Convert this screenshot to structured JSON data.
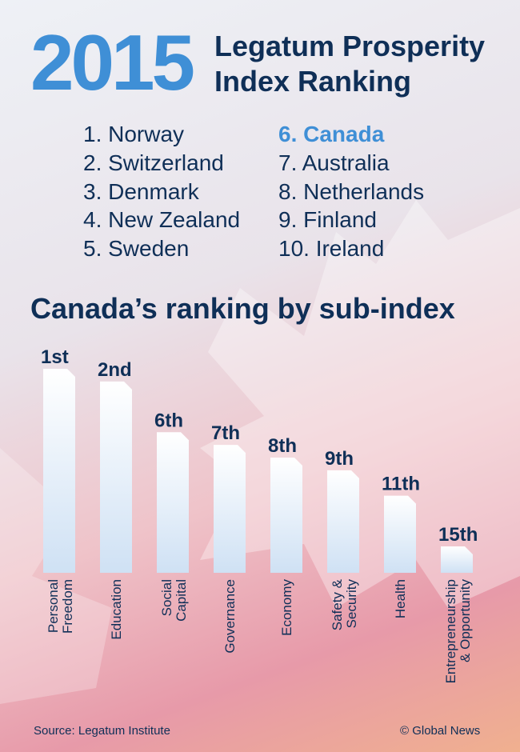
{
  "header": {
    "year": "2015",
    "title_line1": "Legatum Prosperity",
    "title_line2": "Index Ranking"
  },
  "rankings": [
    "1.  Norway",
    "2. Switzerland",
    "3. Denmark",
    "4. New Zealand",
    "5. Sweden",
    "6. Canada",
    "7. Australia",
    "8. Netherlands",
    "9. Finland",
    "10. Ireland"
  ],
  "highlight_color": "#3f8fd6",
  "subtitle": "Canada’s ranking by sub-index",
  "chart_data": {
    "type": "bar",
    "title": "Canada’s ranking by sub-index",
    "categories": [
      [
        "Personal",
        "Freedom"
      ],
      [
        "Education"
      ],
      [
        "Social",
        "Capital"
      ],
      [
        "Governance"
      ],
      [
        "Economy"
      ],
      [
        "Safety &",
        "Security"
      ],
      [
        "Health"
      ],
      [
        "Entrepreneurship",
        "& Opportunity"
      ]
    ],
    "values": [
      1,
      2,
      6,
      7,
      8,
      9,
      11,
      15
    ],
    "labels": [
      "1st",
      "2nd",
      "6th",
      "7th",
      "8th",
      "9th",
      "11th",
      "15th"
    ],
    "y_scale": "rank (1 = best; taller bar = better rank)"
  },
  "footer": {
    "source": "Source: Legatum Institute",
    "credit": "© Global News"
  }
}
